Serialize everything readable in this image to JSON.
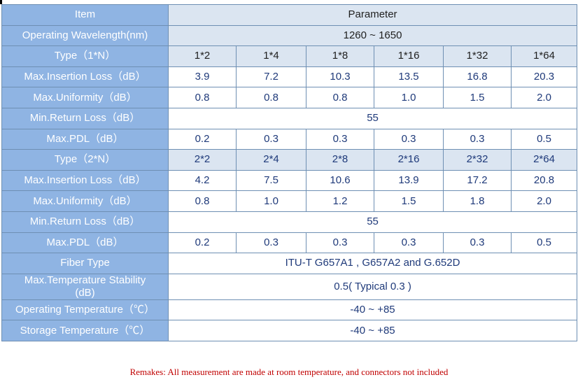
{
  "header": {
    "item": "Item",
    "parameter": "Parameter"
  },
  "wavelength": {
    "label": "Operating Wavelength(nm)",
    "value": "1260 ~ 1650"
  },
  "group1": {
    "type_label": "Type（1*N）",
    "types": [
      "1*2",
      "1*4",
      "1*8",
      "1*16",
      "1*32",
      "1*64"
    ],
    "il_label": "Max.Insertion Loss（dB）",
    "il": [
      "3.9",
      "7.2",
      "10.3",
      "13.5",
      "16.8",
      "20.3"
    ],
    "uni_label": "Max.Uniformity（dB）",
    "uni": [
      "0.8",
      "0.8",
      "0.8",
      "1.0",
      "1.5",
      "2.0"
    ],
    "rl_label": "Min.Return Loss（dB）",
    "rl": "55",
    "pdl_label": "Max.PDL（dB）",
    "pdl": [
      "0.2",
      "0.3",
      "0.3",
      "0.3",
      "0.3",
      "0.5"
    ]
  },
  "group2": {
    "type_label": "Type（2*N）",
    "types": [
      "2*2",
      "2*4",
      "2*8",
      "2*16",
      "2*32",
      "2*64"
    ],
    "il_label": "Max.Insertion Loss（dB）",
    "il": [
      "4.2",
      "7.5",
      "10.6",
      "13.9",
      "17.2",
      "20.8"
    ],
    "uni_label": "Max.Uniformity（dB）",
    "uni": [
      "0.8",
      "1.0",
      "1.2",
      "1.5",
      "1.8",
      "2.0"
    ],
    "rl_label": "Min.Return Loss（dB）",
    "rl": "55",
    "pdl_label": "Max.PDL（dB）",
    "pdl": [
      "0.2",
      "0.3",
      "0.3",
      "0.3",
      "0.3",
      "0.5"
    ]
  },
  "fiber": {
    "label": "Fiber Type",
    "value": "ITU-T G657A1 , G657A2 and G.652D"
  },
  "temp_stability": {
    "label_line1": "Max.Temperature Stability",
    "label_line2": "(dB)",
    "value": "0.5( Typical 0.3 )"
  },
  "op_temp": {
    "label": "Operating Temperature（℃）",
    "value": "-40 ~ +85"
  },
  "storage_temp": {
    "label": "Storage Temperature（℃）",
    "value": "-40 ~ +85"
  },
  "remark": "Remakes: All measurement are made at room temperature, and connectors not included",
  "colors": {
    "label_bg": "#8fb4e3",
    "shade_bg": "#dbe5f1",
    "value_text": "#1f3a7a",
    "remark_text": "#c00000"
  }
}
